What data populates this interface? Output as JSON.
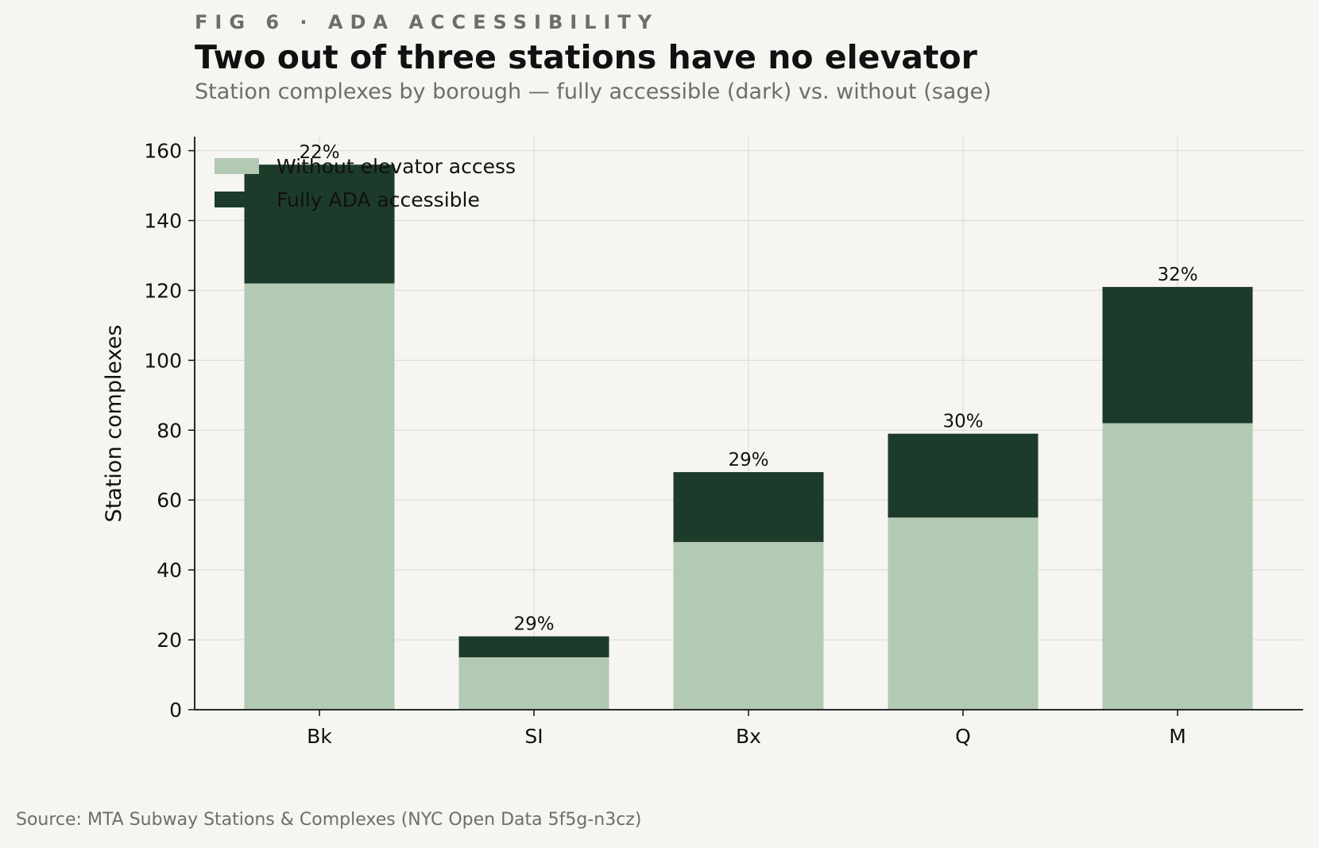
{
  "header": {
    "kicker": "FIG 6 · ADA ACCESSIBILITY",
    "title": "Two out of three stations have no elevator",
    "subtitle": "Station complexes by borough — fully accessible (dark) vs. without (sage)"
  },
  "footer": {
    "source": "Source: MTA Subway Stations & Complexes (NYC Open Data 5f5g-n3cz)"
  },
  "chart_data": {
    "type": "bar",
    "stacked": true,
    "title": "Two out of three stations have no elevator",
    "subtitle": "Station complexes by borough — fully accessible (dark) vs. without (sage)",
    "xlabel": "",
    "ylabel": "Station complexes",
    "categories": [
      "Bk",
      "SI",
      "Bx",
      "Q",
      "M"
    ],
    "series": [
      {
        "name": "Without elevator access",
        "color": "#b2c9b4",
        "values": [
          122,
          15,
          48,
          55,
          82
        ]
      },
      {
        "name": "Fully ADA accessible",
        "color": "#1d3b2b",
        "values": [
          34,
          6,
          20,
          24,
          39
        ]
      }
    ],
    "bar_labels": [
      "22%",
      "29%",
      "29%",
      "30%",
      "32%"
    ],
    "ylim": [
      0,
      164
    ],
    "yticks": [
      0,
      20,
      40,
      60,
      80,
      100,
      120,
      140,
      160
    ],
    "grid": true,
    "legend_position": "top-left"
  }
}
